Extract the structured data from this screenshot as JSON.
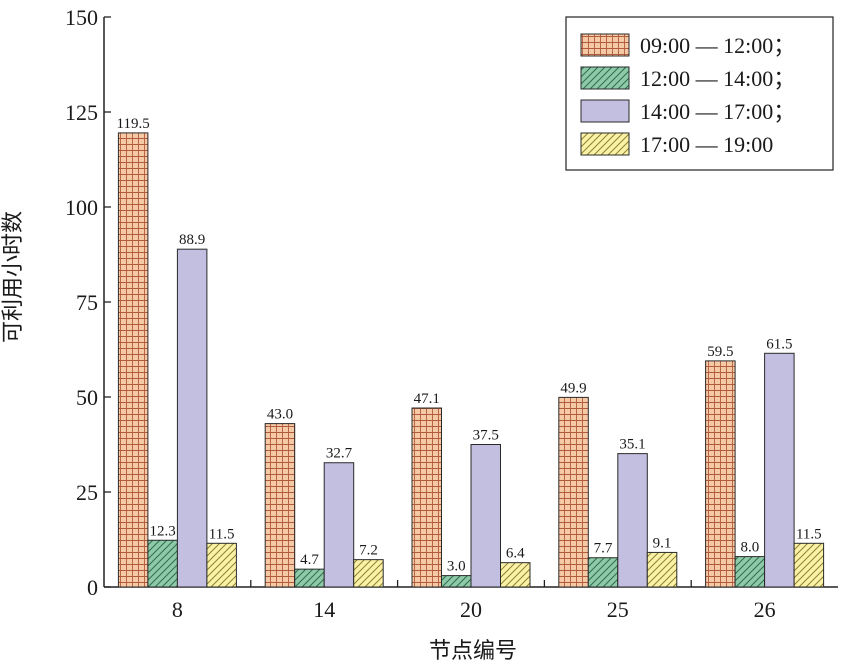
{
  "chart_data": {
    "type": "bar",
    "title": "",
    "xlabel": "节点编号",
    "ylabel": "可利用小时数",
    "categories": [
      "8",
      "14",
      "20",
      "25",
      "26"
    ],
    "ylim": [
      0,
      150
    ],
    "yticks": [
      0,
      25,
      50,
      75,
      100,
      125,
      150
    ],
    "grid": false,
    "legend_position": "top-right",
    "series": [
      {
        "name": "09:00 — 12:00；",
        "values": [
          119.5,
          43.0,
          47.1,
          49.9,
          59.5
        ],
        "labels": [
          "119.5",
          "43.0",
          "47.1",
          "49.9",
          "59.5"
        ],
        "color": "#f6c9a6",
        "line_color": "#b25b3c",
        "pattern": "grid"
      },
      {
        "name": "12:00 — 14:00；",
        "values": [
          12.3,
          4.7,
          3.0,
          7.7,
          8.0
        ],
        "labels": [
          "12.3",
          "4.7",
          "3.0",
          "7.7",
          "8.0"
        ],
        "color": "#8fcaa8",
        "line_color": "#2f6b4f",
        "pattern": "diagonal"
      },
      {
        "name": "14:00 — 17:00；",
        "values": [
          88.9,
          32.7,
          37.5,
          35.1,
          61.5
        ],
        "labels": [
          "88.9",
          "32.7",
          "37.5",
          "35.1",
          "61.5"
        ],
        "color": "#c3bfe0",
        "line_color": "#2a2a2a",
        "pattern": "solid"
      },
      {
        "name": "17:00 — 19:00",
        "values": [
          11.5,
          7.2,
          6.4,
          9.1,
          11.5
        ],
        "labels": [
          "11.5",
          "7.2",
          "6.4",
          "9.1",
          "11.5"
        ],
        "color": "#fbf2a8",
        "line_color": "#8f8230",
        "pattern": "diagonal"
      }
    ]
  }
}
